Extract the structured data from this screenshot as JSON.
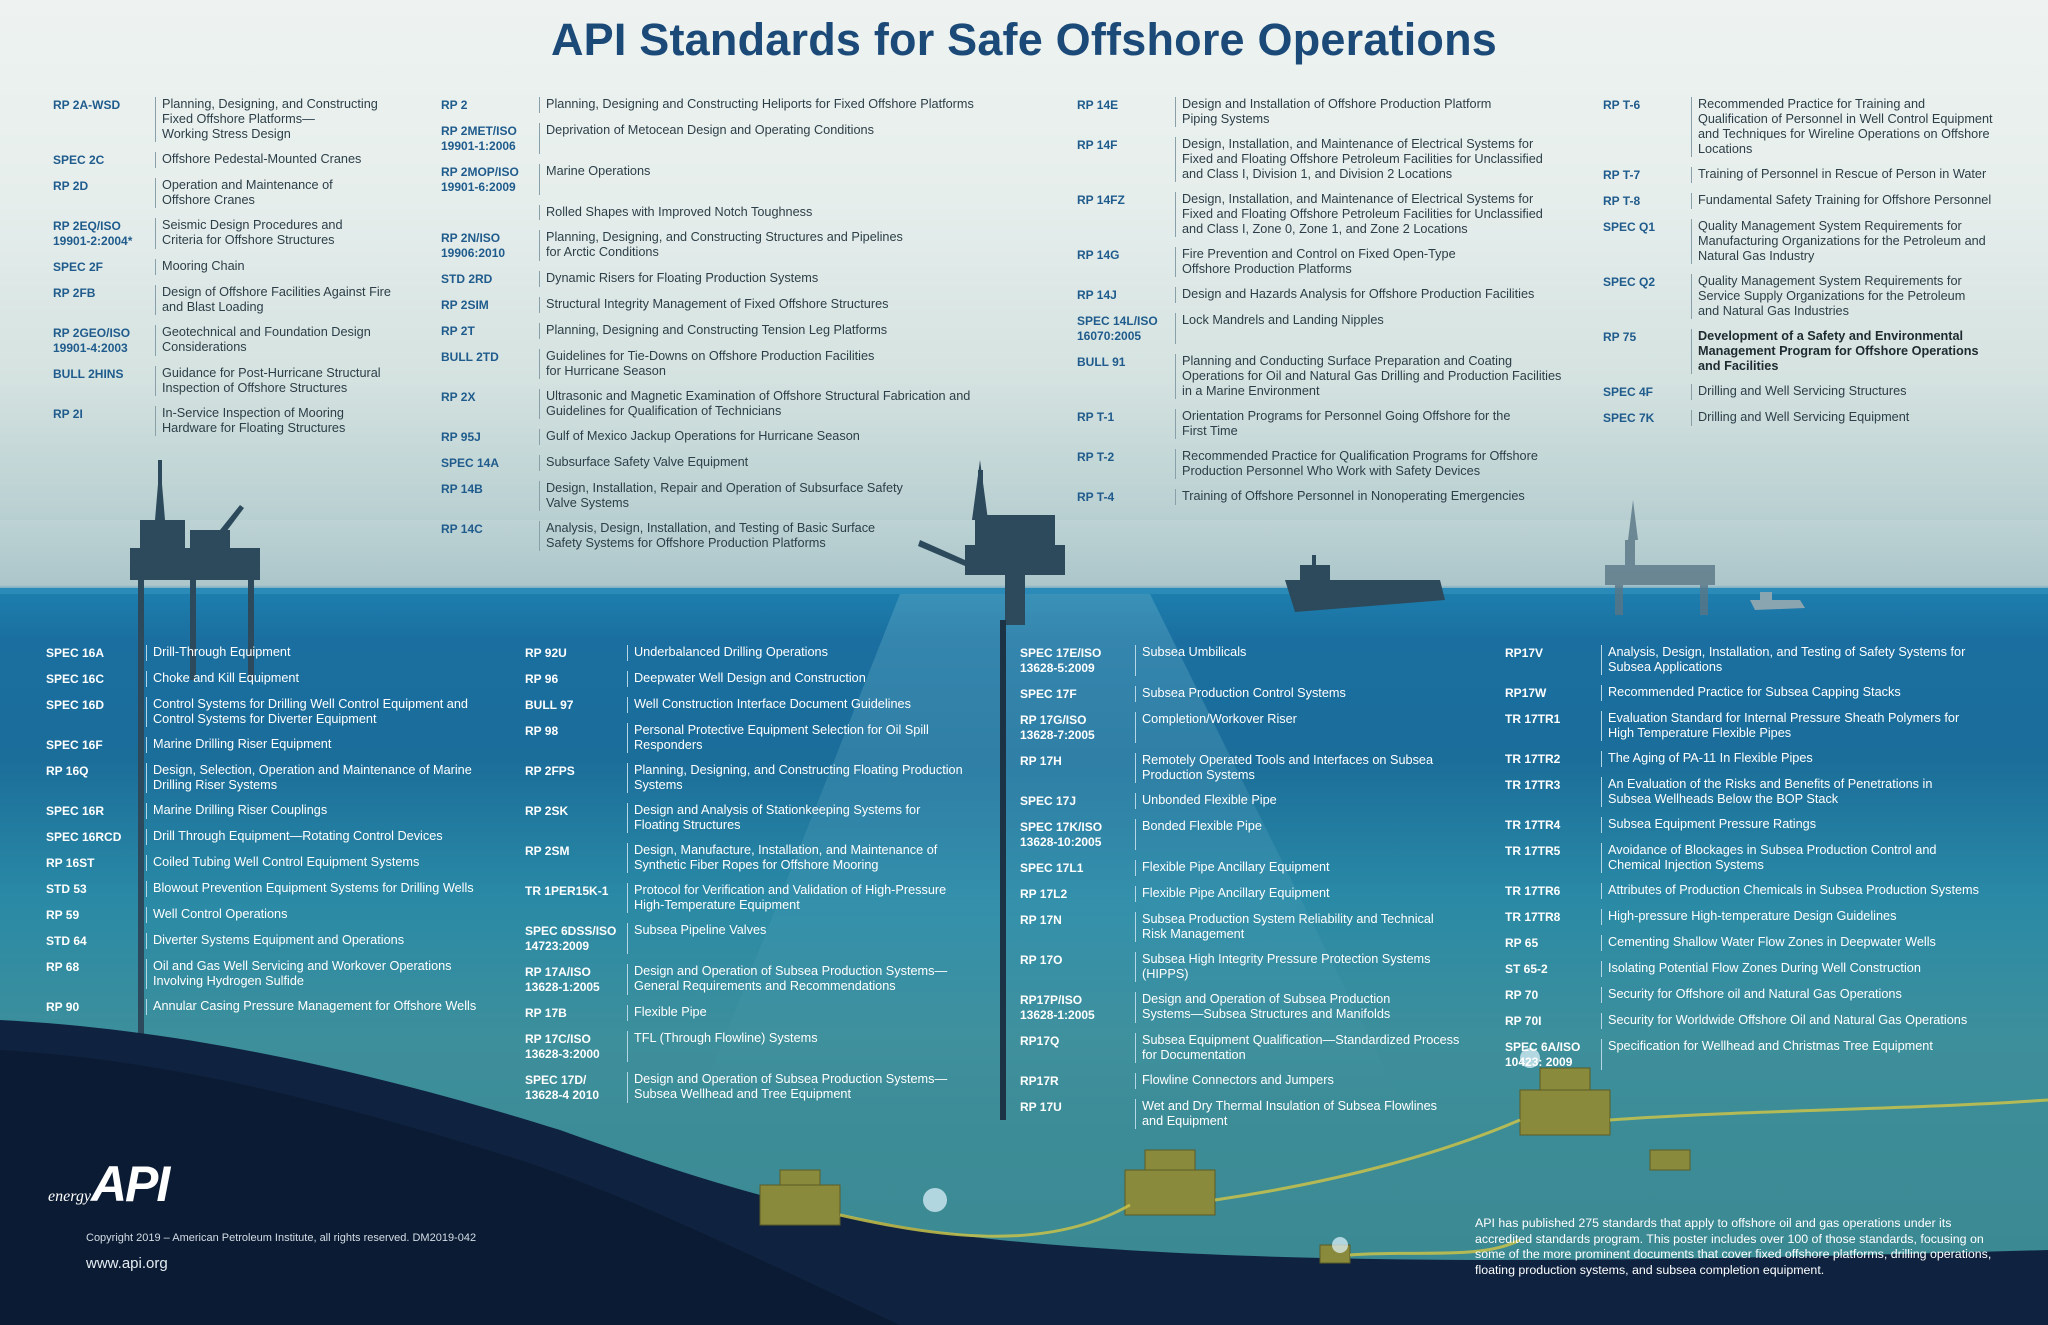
{
  "title": "API Standards for Safe Offshore Operations",
  "top_columns": [
    [
      {
        "code": "RP 2A-WSD",
        "desc": "Planning, Designing, and Constructing\nFixed Offshore Platforms—\nWorking Stress Design"
      },
      {
        "code": "SPEC 2C",
        "desc": "Offshore Pedestal-Mounted Cranes"
      },
      {
        "code": "RP 2D",
        "desc": "Operation and Maintenance of\nOffshore Cranes"
      },
      {
        "code": "RP 2EQ/ISO\n19901-2:2004*",
        "desc": "Seismic Design Procedures and\nCriteria for Offshore Structures"
      },
      {
        "code": "SPEC 2F",
        "desc": "Mooring Chain"
      },
      {
        "code": "RP 2FB",
        "desc": "Design of Offshore Facilities Against Fire\nand Blast Loading"
      },
      {
        "code": "RP 2GEO/ISO\n19901-4:2003",
        "desc": "Geotechnical and Foundation Design\nConsiderations"
      },
      {
        "code": "BULL 2HINS",
        "desc": "Guidance for Post-Hurricane Structural\nInspection of Offshore Structures"
      },
      {
        "code": "RP 2I",
        "desc": "In-Service Inspection of Mooring\nHardware for Floating Structures"
      }
    ],
    [
      {
        "code": "RP 2",
        "desc": "Planning, Designing and Constructing Heliports for Fixed Offshore Platforms"
      },
      {
        "code": "RP 2MET/ISO\n19901-1:2006",
        "desc": "Deprivation of Metocean Design and Operating Conditions"
      },
      {
        "code": "RP 2MOP/ISO\n19901-6:2009",
        "desc": "Marine Operations"
      },
      {
        "code": "",
        "desc": "Rolled Shapes with Improved Notch Toughness"
      },
      {
        "code": "RP 2N/ISO\n19906:2010",
        "desc": "Planning, Designing, and Constructing Structures and Pipelines\nfor Arctic Conditions"
      },
      {
        "code": "STD 2RD",
        "desc": "Dynamic Risers for Floating Production Systems"
      },
      {
        "code": "RP 2SIM",
        "desc": "Structural Integrity Management of Fixed Offshore Structures"
      },
      {
        "code": "RP 2T",
        "desc": "Planning, Designing and Constructing Tension Leg Platforms"
      },
      {
        "code": "BULL 2TD",
        "desc": "Guidelines for Tie-Downs on Offshore Production Facilities\nfor Hurricane Season"
      },
      {
        "code": "RP 2X",
        "desc": "Ultrasonic and Magnetic Examination of Offshore Structural Fabrication and\nGuidelines for Qualification of Technicians"
      },
      {
        "code": "RP 95J",
        "desc": "Gulf of Mexico Jackup Operations for Hurricane Season"
      },
      {
        "code": "SPEC 14A",
        "desc": "Subsurface Safety Valve Equipment"
      },
      {
        "code": "RP 14B",
        "desc": "Design, Installation, Repair and Operation of Subsurface Safety\nValve Systems"
      },
      {
        "code": "RP 14C",
        "desc": "Analysis, Design, Installation, and Testing of Basic Surface\nSafety Systems for Offshore Production Platforms"
      }
    ],
    [
      {
        "code": "RP 14E",
        "desc": "Design and Installation of Offshore Production Platform\nPiping Systems"
      },
      {
        "code": "RP 14F",
        "desc": "Design, Installation, and Maintenance of Electrical Systems for\nFixed and Floating Offshore Petroleum Facilities for Unclassified\nand Class I, Division 1, and Division 2 Locations"
      },
      {
        "code": "RP 14FZ",
        "desc": "Design, Installation, and Maintenance of Electrical Systems for\nFixed and Floating Offshore Petroleum Facilities for Unclassified\nand Class I, Zone 0, Zone 1, and Zone 2 Locations"
      },
      {
        "code": "RP 14G",
        "desc": "Fire Prevention and Control on Fixed Open-Type\nOffshore Production Platforms"
      },
      {
        "code": "RP 14J",
        "desc": "Design and Hazards Analysis for Offshore Production Facilities"
      },
      {
        "code": "SPEC 14L/ISO\n16070:2005",
        "desc": "Lock Mandrels and Landing Nipples"
      },
      {
        "code": "BULL 91",
        "desc": "Planning and Conducting Surface Preparation and Coating\nOperations for Oil and Natural Gas Drilling and Production Facilities\nin a Marine Environment"
      },
      {
        "code": "RP T-1",
        "desc": "Orientation Programs for Personnel Going Offshore for the\nFirst Time"
      },
      {
        "code": "RP T-2",
        "desc": "Recommended Practice for Qualification Programs for Offshore\nProduction Personnel Who Work with Safety Devices"
      },
      {
        "code": "RP T-4",
        "desc": "Training of Offshore Personnel in Nonoperating Emergencies"
      }
    ],
    [
      {
        "code": "RP T-6",
        "desc": "Recommended Practice for Training and\nQualification of Personnel in Well Control Equipment\nand Techniques for Wireline Operations on Offshore\nLocations"
      },
      {
        "code": "RP T-7",
        "desc": "Training of Personnel in Rescue of Person in Water"
      },
      {
        "code": "RP T-8",
        "desc": "Fundamental Safety Training for Offshore Personnel"
      },
      {
        "code": "SPEC Q1",
        "desc": "Quality Management System Requirements for\nManufacturing Organizations for the Petroleum and\nNatural Gas Industry"
      },
      {
        "code": "SPEC Q2",
        "desc": "Quality Management System Requirements for\nService Supply Organizations for the Petroleum\nand Natural Gas Industries"
      },
      {
        "code": "RP 75",
        "desc": "Development of a Safety and Environmental\nManagement Program for Offshore Operations\nand Facilities",
        "bold": true
      },
      {
        "code": "SPEC 4F",
        "desc": "Drilling and Well Servicing Structures"
      },
      {
        "code": "SPEC 7K",
        "desc": "Drilling and Well Servicing Equipment"
      }
    ]
  ],
  "bottom_columns": [
    [
      {
        "code": "SPEC 16A",
        "desc": "Drill-Through Equipment"
      },
      {
        "code": "SPEC 16C",
        "desc": "Choke and Kill Equipment"
      },
      {
        "code": "SPEC 16D",
        "desc": "Control Systems for Drilling Well Control Equipment and\nControl Systems for Diverter Equipment"
      },
      {
        "code": "SPEC 16F",
        "desc": "Marine Drilling Riser Equipment"
      },
      {
        "code": "RP 16Q",
        "desc": "Design, Selection, Operation and Maintenance of Marine\nDrilling Riser Systems"
      },
      {
        "code": "SPEC 16R",
        "desc": "Marine Drilling Riser Couplings"
      },
      {
        "code": "SPEC 16RCD",
        "desc": "Drill Through Equipment—Rotating Control Devices"
      },
      {
        "code": "RP 16ST",
        "desc": "Coiled Tubing Well Control Equipment Systems"
      },
      {
        "code": "STD 53",
        "desc": "Blowout Prevention Equipment Systems for Drilling Wells"
      },
      {
        "code": "RP 59",
        "desc": "Well Control Operations"
      },
      {
        "code": "STD 64",
        "desc": "Diverter Systems Equipment and Operations"
      },
      {
        "code": "RP 68",
        "desc": "Oil and Gas Well Servicing and Workover Operations\nInvolving Hydrogen Sulfide"
      },
      {
        "code": "RP 90",
        "desc": "Annular Casing Pressure Management for Offshore Wells"
      }
    ],
    [
      {
        "code": "RP 92U",
        "desc": "Underbalanced Drilling Operations"
      },
      {
        "code": "RP 96",
        "desc": "Deepwater Well Design and Construction"
      },
      {
        "code": "BULL 97",
        "desc": "Well Construction Interface Document Guidelines"
      },
      {
        "code": "RP 98",
        "desc": "Personal Protective Equipment Selection for Oil Spill\nResponders"
      },
      {
        "code": "RP 2FPS",
        "desc": "Planning, Designing, and Constructing Floating Production\nSystems"
      },
      {
        "code": "RP 2SK",
        "desc": "Design and Analysis of Stationkeeping Systems for\nFloating Structures"
      },
      {
        "code": "RP 2SM",
        "desc": "Design, Manufacture, Installation, and Maintenance of\nSynthetic Fiber Ropes for Offshore Mooring"
      },
      {
        "code": "TR 1PER15K-1",
        "desc": "Protocol for Verification and Validation of High-Pressure\nHigh-Temperature Equipment"
      },
      {
        "code": "SPEC 6DSS/ISO\n14723:2009",
        "desc": "Subsea Pipeline Valves"
      },
      {
        "code": "RP 17A/ISO\n13628-1:2005",
        "desc": "Design and Operation of Subsea Production Systems—\nGeneral Requirements and Recommendations"
      },
      {
        "code": "RP 17B",
        "desc": "Flexible Pipe"
      },
      {
        "code": "RP 17C/ISO\n13628-3:2000",
        "desc": "TFL (Through Flowline) Systems"
      },
      {
        "code": "SPEC 17D/\n13628-4 2010",
        "desc": "Design and Operation of Subsea Production Systems—\nSubsea Wellhead and Tree Equipment"
      }
    ],
    [
      {
        "code": "SPEC 17E/ISO\n13628-5:2009",
        "desc": "Subsea Umbilicals"
      },
      {
        "code": "SPEC 17F",
        "desc": "Subsea Production Control Systems"
      },
      {
        "code": "RP 17G/ISO\n13628-7:2005",
        "desc": "Completion/Workover Riser"
      },
      {
        "code": "RP 17H",
        "desc": "Remotely Operated Tools and Interfaces on Subsea\nProduction Systems"
      },
      {
        "code": "SPEC 17J",
        "desc": "Unbonded Flexible Pipe"
      },
      {
        "code": "SPEC 17K/ISO\n13628-10:2005",
        "desc": "Bonded Flexible Pipe"
      },
      {
        "code": "SPEC 17L1",
        "desc": "Flexible Pipe Ancillary Equipment"
      },
      {
        "code": "RP 17L2",
        "desc": "Flexible Pipe Ancillary Equipment"
      },
      {
        "code": "RP 17N",
        "desc": "Subsea Production System Reliability and Technical\nRisk Management"
      },
      {
        "code": "RP 17O",
        "desc": "Subsea High Integrity Pressure Protection Systems (HIPPS)"
      },
      {
        "code": "RP17P/ISO\n13628-1:2005",
        "desc": "Design and Operation of Subsea Production\nSystems—Subsea Structures and Manifolds"
      },
      {
        "code": "RP17Q",
        "desc": "Subsea Equipment Qualification—Standardized Process\nfor Documentation"
      },
      {
        "code": "RP17R",
        "desc": "Flowline Connectors and Jumpers"
      },
      {
        "code": "RP 17U",
        "desc": "Wet and Dry Thermal Insulation of Subsea Flowlines\nand Equipment"
      }
    ],
    [
      {
        "code": "RP17V",
        "desc": "Analysis, Design, Installation, and Testing of Safety Systems for\nSubsea Applications"
      },
      {
        "code": "RP17W",
        "desc": "Recommended Practice for Subsea Capping Stacks"
      },
      {
        "code": "TR 17TR1",
        "desc": "Evaluation Standard for Internal Pressure Sheath Polymers for\nHigh Temperature Flexible Pipes"
      },
      {
        "code": "TR 17TR2",
        "desc": "The Aging of PA-11 In Flexible Pipes"
      },
      {
        "code": "TR 17TR3",
        "desc": "An Evaluation of the Risks and Benefits of Penetrations in\nSubsea Wellheads Below the BOP Stack"
      },
      {
        "code": "TR 17TR4",
        "desc": "Subsea Equipment Pressure Ratings"
      },
      {
        "code": "TR 17TR5",
        "desc": "Avoidance of Blockages in Subsea Production Control and\nChemical Injection Systems"
      },
      {
        "code": "TR 17TR6",
        "desc": "Attributes of Production Chemicals in Subsea Production Systems"
      },
      {
        "code": "TR 17TR8",
        "desc": "High-pressure High-temperature Design Guidelines"
      },
      {
        "code": "RP 65",
        "desc": "Cementing Shallow Water Flow Zones in Deepwater Wells"
      },
      {
        "code": "ST 65-2",
        "desc": "Isolating Potential Flow Zones During Well Construction"
      },
      {
        "code": "RP 70",
        "desc": "Security for Offshore oil and Natural Gas Operations"
      },
      {
        "code": "RP 70I",
        "desc": "Security for Worldwide Offshore Oil and Natural Gas Operations"
      },
      {
        "code": "SPEC 6A/ISO\n10423: 2009",
        "desc": "Specification for Wellhead and Christmas Tree Equipment"
      }
    ]
  ],
  "logo": {
    "energy": "energy",
    "api": "API"
  },
  "copyright": "Copyright 2019 – American Petroleum Institute, all rights reserved. DM2019-042",
  "website": "www.api.org",
  "note": "API has published 275 standards that apply to offshore oil and gas operations under its accredited standards program.  This poster includes over 100 of those standards, focusing on some of the more prominent documents that cover fixed offshore platforms, drilling operations, floating production systems, and subsea completion equipment.",
  "colors": {
    "title": "#1c4a78",
    "code_top": "#1f5b8c",
    "ocean": "#1b6e9a",
    "seabed": "#0f2340"
  }
}
